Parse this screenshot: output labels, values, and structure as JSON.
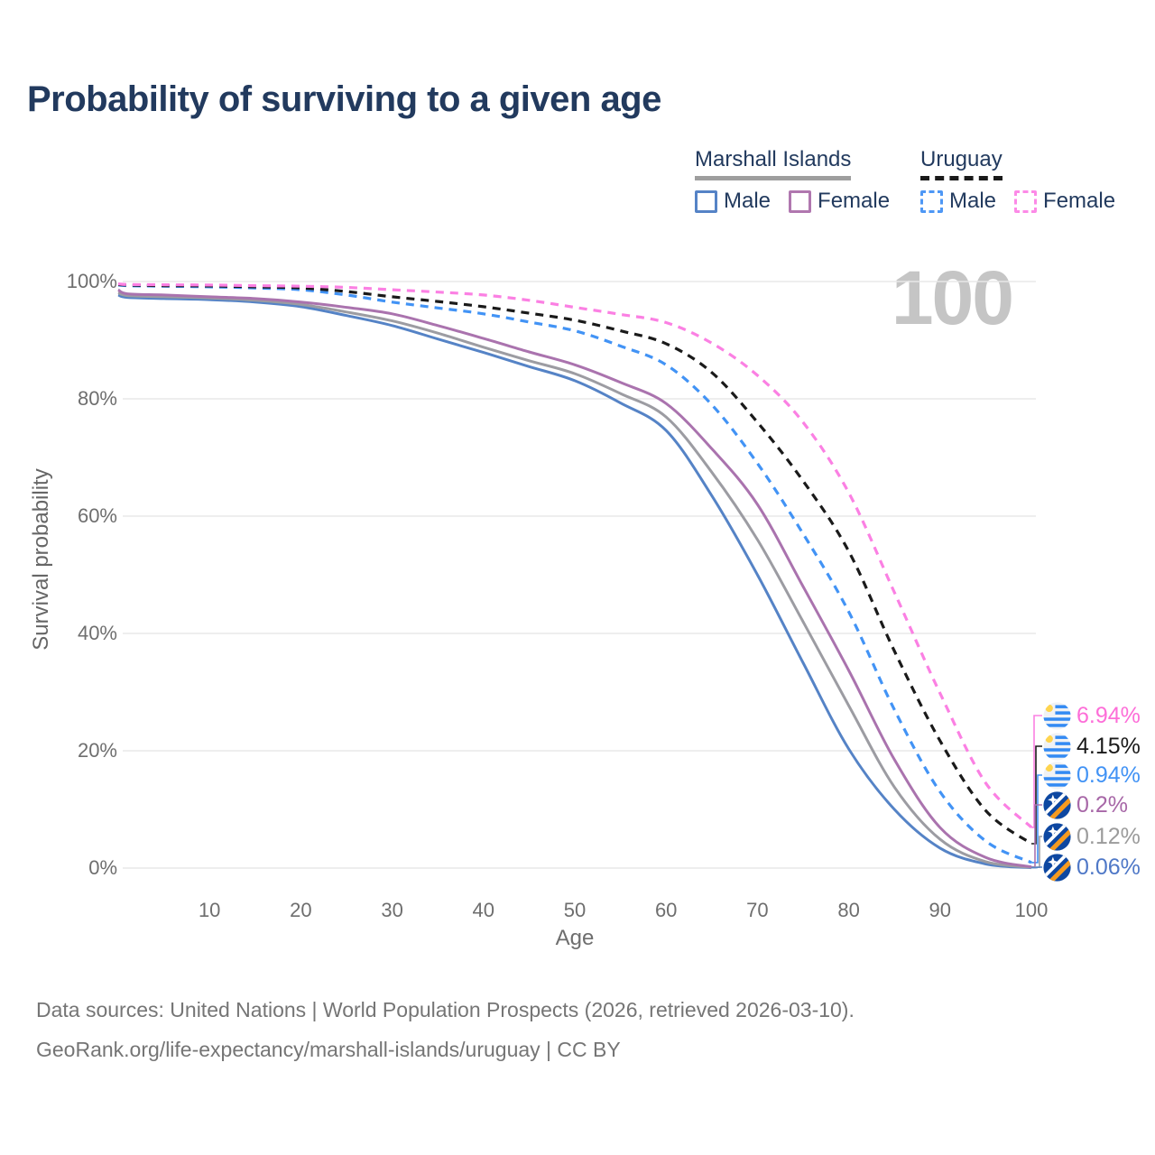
{
  "title": "Probability of surviving to a given age",
  "watermark_age": "100",
  "legend": {
    "groups": [
      {
        "country": "Marshall Islands",
        "line_style": "solid",
        "underline_color": "#9e9e9e",
        "items": [
          {
            "label": "Male",
            "color": "#5583c6",
            "style": "solid"
          },
          {
            "label": "Female",
            "color": "#b077af",
            "style": "solid"
          }
        ]
      },
      {
        "country": "Uruguay",
        "line_style": "dashed",
        "underline_color": "#1a1a1a",
        "items": [
          {
            "label": "Male",
            "color": "#4e97f5",
            "style": "dashed"
          },
          {
            "label": "Female",
            "color": "#fc8ae7",
            "style": "dashed"
          }
        ]
      }
    ]
  },
  "axes": {
    "y_title": "Survival probability",
    "x_title": "Age",
    "y_ticks": [
      {
        "label": "100%",
        "value": 100
      },
      {
        "label": "80%",
        "value": 80
      },
      {
        "label": "60%",
        "value": 60
      },
      {
        "label": "40%",
        "value": 40
      },
      {
        "label": "20%",
        "value": 20
      },
      {
        "label": "0%",
        "value": 0
      }
    ],
    "x_ticks": [
      10,
      20,
      30,
      40,
      50,
      60,
      70,
      80,
      90,
      100
    ]
  },
  "end_labels": [
    {
      "value": "6.94%",
      "color": "#fd6ed8",
      "flag": "uruguay"
    },
    {
      "value": "4.15%",
      "color": "#1a1a1a",
      "flag": "uruguay"
    },
    {
      "value": "0.94%",
      "color": "#4293f5",
      "flag": "uruguay"
    },
    {
      "value": "0.2%",
      "color": "#a767a7",
      "flag": "marshall-islands"
    },
    {
      "value": "0.12%",
      "color": "#9b9b9b",
      "flag": "marshall-islands"
    },
    {
      "value": "0.06%",
      "color": "#4f78c7",
      "flag": "marshall-islands"
    }
  ],
  "footer": {
    "line1": "Data sources: United Nations | World Population Prospects (2026, retrieved 2026-03-10).",
    "line2": "GeoRank.org/life-expectancy/marshall-islands/uruguay | CC BY"
  },
  "chart_data": {
    "type": "line",
    "title": "Probability of surviving to a given age",
    "xlabel": "Age",
    "ylabel": "Survival probability",
    "x_range": [
      0,
      100
    ],
    "ylim_pct": [
      0,
      100
    ],
    "grid": "horizontal",
    "legend_position": "top-right",
    "ages": [
      0,
      1,
      5,
      10,
      15,
      20,
      25,
      30,
      35,
      40,
      45,
      50,
      55,
      60,
      65,
      70,
      75,
      80,
      85,
      90,
      95,
      100
    ],
    "series": [
      {
        "name": "Uruguay Female",
        "country": "Uruguay",
        "sex": "Female",
        "color": "#fb80e3",
        "dash": true,
        "end_value_pct": 6.94,
        "values": [
          99.6,
          99.5,
          99.45,
          99.4,
          99.3,
          99.2,
          99.0,
          98.6,
          98.2,
          97.7,
          96.8,
          95.6,
          94.4,
          93.0,
          89.5,
          84.0,
          76.0,
          64.0,
          47.0,
          29.8,
          14.5,
          6.94
        ]
      },
      {
        "name": "Uruguay Both sexes",
        "country": "Uruguay",
        "sex": "Both",
        "color": "#1a1a1a",
        "dash": true,
        "end_value_pct": 4.15,
        "values": [
          99.5,
          99.4,
          99.3,
          99.25,
          99.1,
          98.9,
          98.3,
          97.4,
          96.6,
          95.7,
          94.6,
          93.4,
          91.6,
          89.4,
          84.5,
          76.0,
          66.0,
          54.0,
          37.0,
          21.7,
          9.8,
          4.15
        ]
      },
      {
        "name": "Uruguay Male",
        "country": "Uruguay",
        "sex": "Male",
        "color": "#4293f5",
        "dash": true,
        "end_value_pct": 0.94,
        "values": [
          99.4,
          99.3,
          99.2,
          99.1,
          98.9,
          98.6,
          97.7,
          96.5,
          95.5,
          94.5,
          93.1,
          91.6,
          89.0,
          85.8,
          79.0,
          69.0,
          57.0,
          43.7,
          27.0,
          13.0,
          4.6,
          0.94
        ]
      },
      {
        "name": "Marshall Islands Female",
        "country": "Marshall Islands",
        "sex": "Female",
        "color": "#aa73ae",
        "dash": false,
        "end_value_pct": 0.2,
        "values": [
          98.6,
          97.9,
          97.7,
          97.4,
          97.1,
          96.5,
          95.6,
          94.5,
          92.5,
          90.3,
          88.0,
          85.8,
          82.8,
          79.2,
          71.5,
          62.0,
          48.0,
          33.7,
          18.5,
          6.9,
          1.8,
          0.2
        ]
      },
      {
        "name": "Marshall Islands Both sexes",
        "country": "Marshall Islands",
        "sex": "Both",
        "color": "#9c9ca2",
        "dash": false,
        "end_value_pct": 0.12,
        "values": [
          98.1,
          97.6,
          97.4,
          97.2,
          96.8,
          96.1,
          94.8,
          93.3,
          91.2,
          88.8,
          86.5,
          84.3,
          80.9,
          76.9,
          67.5,
          56.0,
          42.0,
          27.7,
          13.8,
          4.9,
          1.1,
          0.12
        ]
      },
      {
        "name": "Marshall Islands Male",
        "country": "Marshall Islands",
        "sex": "Male",
        "color": "#5583c6",
        "dash": false,
        "end_value_pct": 0.06,
        "values": [
          97.7,
          97.3,
          97.1,
          96.9,
          96.5,
          95.7,
          94.2,
          92.5,
          90.2,
          87.9,
          85.5,
          83.1,
          79.3,
          74.6,
          63.5,
          50.0,
          35.0,
          20.3,
          10.0,
          3.4,
          0.7,
          0.06
        ]
      }
    ]
  }
}
